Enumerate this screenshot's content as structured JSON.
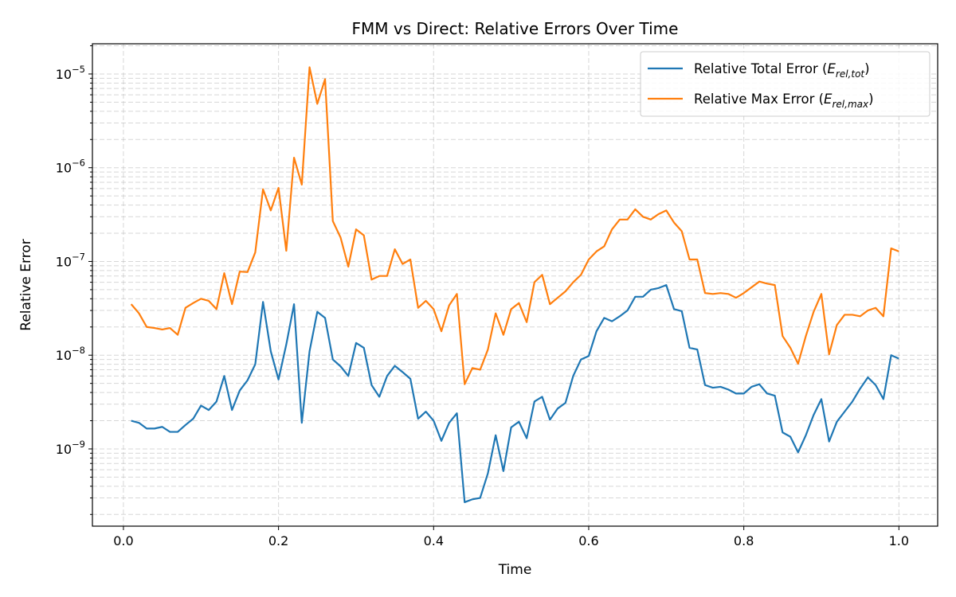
{
  "chart_data": {
    "type": "line",
    "title": "FMM vs Direct: Relative Errors Over Time",
    "xlabel": "Time",
    "ylabel": "Relative Error",
    "xlim": [
      -0.04,
      1.05
    ],
    "ylim": [
      1.5e-10,
      2.1e-05
    ],
    "yscale": "log",
    "grid": true,
    "legend_position": "top-right",
    "x_ticks": [
      0.0,
      0.2,
      0.4,
      0.6,
      0.8,
      1.0
    ],
    "x_tick_labels": [
      "0.0",
      "0.2",
      "0.4",
      "0.6",
      "0.8",
      "1.0"
    ],
    "y_tick_exponents": [
      -9,
      -8,
      -7,
      -6,
      -5
    ],
    "x": [
      0.01,
      0.02,
      0.03,
      0.04,
      0.05,
      0.06,
      0.07,
      0.08,
      0.09,
      0.1,
      0.11,
      0.12,
      0.13,
      0.14,
      0.15,
      0.16,
      0.17,
      0.18,
      0.19,
      0.2,
      0.21,
      0.22,
      0.23,
      0.24,
      0.25,
      0.26,
      0.27,
      0.28,
      0.29,
      0.3,
      0.31,
      0.32,
      0.33,
      0.34,
      0.35,
      0.36,
      0.37,
      0.38,
      0.39,
      0.4,
      0.41,
      0.42,
      0.43,
      0.44,
      0.45,
      0.46,
      0.47,
      0.48,
      0.49,
      0.5,
      0.51,
      0.52,
      0.53,
      0.54,
      0.55,
      0.56,
      0.57,
      0.58,
      0.59,
      0.6,
      0.61,
      0.62,
      0.63,
      0.64,
      0.65,
      0.66,
      0.67,
      0.68,
      0.69,
      0.7,
      0.71,
      0.72,
      0.73,
      0.74,
      0.75,
      0.76,
      0.77,
      0.78,
      0.79,
      0.8,
      0.81,
      0.82,
      0.83,
      0.84,
      0.85,
      0.86,
      0.87,
      0.88,
      0.89,
      0.9,
      0.91,
      0.92,
      0.93,
      0.94,
      0.95,
      0.96,
      0.97,
      0.98,
      0.99,
      1.0
    ],
    "series": [
      {
        "name": "Relative Total Error",
        "name_math": "rel,tot",
        "color": "#1f77b4",
        "values": [
          2e-09,
          1.9e-09,
          1.65e-09,
          1.65e-09,
          1.72e-09,
          1.52e-09,
          1.52e-09,
          1.8e-09,
          2.1e-09,
          2.9e-09,
          2.6e-09,
          3.2e-09,
          6e-09,
          2.6e-09,
          4.2e-09,
          5.4e-09,
          8e-09,
          3.7e-08,
          1.1e-08,
          5.5e-09,
          1.3e-08,
          3.5e-08,
          1.9e-09,
          1.1e-08,
          2.9e-08,
          2.5e-08,
          9e-09,
          7.6e-09,
          6e-09,
          1.35e-08,
          1.2e-08,
          4.8e-09,
          3.6e-09,
          6e-09,
          7.7e-09,
          6.6e-09,
          5.6e-09,
          2.1e-09,
          2.5e-09,
          2e-09,
          1.22e-09,
          1.9e-09,
          2.4e-09,
          2.7e-10,
          2.9e-10,
          3e-10,
          5.5e-10,
          1.4e-09,
          5.8e-10,
          1.7e-09,
          1.95e-09,
          1.3e-09,
          3.2e-09,
          3.6e-09,
          2.05e-09,
          2.7e-09,
          3.1e-09,
          6e-09,
          9e-09,
          9.8e-09,
          1.8e-08,
          2.5e-08,
          2.3e-08,
          2.6e-08,
          3e-08,
          4.2e-08,
          4.2e-08,
          5e-08,
          5.2e-08,
          5.6e-08,
          3.1e-08,
          2.95e-08,
          1.2e-08,
          1.15e-08,
          4.8e-09,
          4.5e-09,
          4.6e-09,
          4.3e-09,
          3.9e-09,
          3.9e-09,
          4.6e-09,
          4.9e-09,
          3.9e-09,
          3.7e-09,
          1.5e-09,
          1.35e-09,
          9.2e-10,
          1.4e-09,
          2.3e-09,
          3.4e-09,
          1.2e-09,
          1.95e-09,
          2.5e-09,
          3.2e-09,
          4.4e-09,
          5.8e-09,
          4.8e-09,
          3.4e-09,
          1e-08,
          9.2e-09
        ]
      },
      {
        "name": "Relative Max Error",
        "name_math": "rel,max",
        "color": "#ff7f0e",
        "values": [
          3.5e-08,
          2.8e-08,
          2e-08,
          1.95e-08,
          1.88e-08,
          1.95e-08,
          1.65e-08,
          3.2e-08,
          3.6e-08,
          4e-08,
          3.8e-08,
          3.1e-08,
          7.5e-08,
          3.5e-08,
          7.8e-08,
          7.7e-08,
          1.25e-07,
          5.9e-07,
          3.5e-07,
          6.1e-07,
          1.3e-07,
          1.28e-06,
          6.6e-07,
          1.18e-05,
          4.8e-06,
          8.8e-06,
          2.7e-07,
          1.8e-07,
          8.8e-08,
          2.2e-07,
          1.9e-07,
          6.4e-08,
          7e-08,
          7e-08,
          1.35e-07,
          9.4e-08,
          1.05e-07,
          3.2e-08,
          3.8e-08,
          3.1e-08,
          1.8e-08,
          3.4e-08,
          4.5e-08,
          4.9e-09,
          7.3e-09,
          7e-09,
          1.15e-08,
          2.8e-08,
          1.65e-08,
          3.1e-08,
          3.6e-08,
          2.25e-08,
          6e-08,
          7.2e-08,
          3.5e-08,
          4.1e-08,
          4.8e-08,
          6e-08,
          7.2e-08,
          1.05e-07,
          1.28e-07,
          1.45e-07,
          2.2e-07,
          2.8e-07,
          2.8e-07,
          3.6e-07,
          3e-07,
          2.8e-07,
          3.2e-07,
          3.5e-07,
          2.6e-07,
          2.1e-07,
          1.05e-07,
          1.05e-07,
          4.6e-08,
          4.5e-08,
          4.6e-08,
          4.5e-08,
          4.1e-08,
          4.6e-08,
          5.3e-08,
          6.1e-08,
          5.8e-08,
          5.6e-08,
          1.6e-08,
          1.2e-08,
          8.1e-09,
          1.6e-08,
          2.9e-08,
          4.5e-08,
          1.02e-08,
          2.1e-08,
          2.7e-08,
          2.7e-08,
          2.6e-08,
          3e-08,
          3.2e-08,
          2.6e-08,
          1.38e-07,
          1.28e-07
        ]
      }
    ]
  }
}
